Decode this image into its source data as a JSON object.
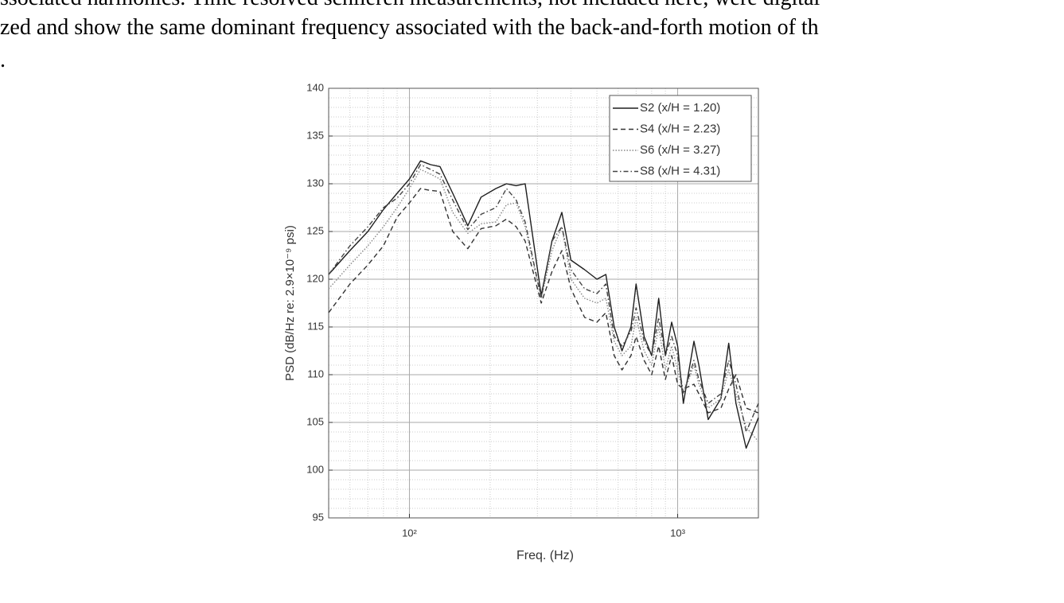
{
  "text_lines": [
    "ssociated harmonics. Time resolved schlieren measurements, not included here, were digital",
    "zed and show the same dominant frequency associated with the back-and-forth motion of th",
    "."
  ],
  "chart_data": {
    "type": "line",
    "x_label": "Freq. (Hz)",
    "y_label": "PSD (dB/Hz re: 2.9×10⁻⁹ psi)",
    "x": [
      50,
      60,
      70,
      80,
      90,
      100,
      110,
      120,
      130,
      145,
      165,
      185,
      210,
      230,
      250,
      270,
      310,
      340,
      370,
      400,
      450,
      500,
      540,
      580,
      620,
      670,
      700,
      750,
      800,
      850,
      900,
      950,
      1000,
      1050,
      1150,
      1200,
      1300,
      1450,
      1550,
      1650,
      1800,
      2000
    ],
    "series": [
      {
        "name": "S2 (x/H = 1.20)",
        "color": "#1e1e1e",
        "dash": "solid",
        "values": [
          120.5,
          123,
          125,
          127.3,
          129,
          130.5,
          132.4,
          132,
          131.8,
          129,
          125.6,
          128.6,
          129.5,
          130,
          129.8,
          130,
          118.3,
          124,
          127,
          122,
          121,
          120,
          120.5,
          115,
          112.5,
          115,
          119.5,
          114,
          112,
          118,
          112,
          115.5,
          113,
          107,
          113.5,
          111,
          105.3,
          107.5,
          113.3,
          107,
          102.3,
          105.5
        ]
      },
      {
        "name": "S4 (x/H = 2.23)",
        "color": "#333333",
        "dash": "dashed",
        "values": [
          116.5,
          119.5,
          121.5,
          123.5,
          126.5,
          128,
          129.5,
          129.3,
          129.2,
          125,
          123.2,
          125.3,
          125.6,
          126.3,
          125.5,
          124,
          117.5,
          120.8,
          123,
          119,
          116,
          115.5,
          116.5,
          112,
          110.5,
          112,
          114,
          111.5,
          110,
          113,
          109.5,
          112,
          109,
          108.5,
          109,
          108,
          106,
          106.5,
          108.5,
          110,
          106.5,
          106
        ]
      },
      {
        "name": "S6 (x/H = 3.27)",
        "color": "#888888",
        "dash": "dotted",
        "values": [
          119,
          121.5,
          123.5,
          125.5,
          127.5,
          129.5,
          131.5,
          131,
          130.5,
          127,
          124.8,
          125.8,
          126,
          127.8,
          128,
          125.5,
          118,
          123,
          125.5,
          120,
          118,
          117.5,
          118,
          113.5,
          112,
          113,
          116,
          112.5,
          111,
          115,
          110.5,
          113,
          110.5,
          108,
          111,
          109,
          106.5,
          107.5,
          110.5,
          108,
          104.5,
          103
        ]
      },
      {
        "name": "S8 (x/H = 4.31)",
        "color": "#444444",
        "dash": "dashdot",
        "values": [
          120.5,
          123.5,
          125.5,
          127.5,
          128.5,
          130,
          132,
          131.5,
          131,
          128.3,
          125.2,
          126.8,
          127.5,
          129.5,
          128.3,
          126,
          118,
          124,
          125.5,
          121,
          119,
          118.5,
          119.5,
          114,
          113,
          114.5,
          117,
          113.5,
          112,
          116,
          112,
          114,
          112,
          108,
          111.5,
          109.5,
          107,
          108,
          111.5,
          109,
          104,
          107
        ]
      }
    ],
    "xscale": "log",
    "xlim": [
      50,
      2000
    ],
    "xticks": [
      {
        "value": 100,
        "label": "10²"
      },
      {
        "value": 1000,
        "label": "10³"
      }
    ],
    "ylim": [
      95,
      140
    ],
    "yticks": [
      95,
      100,
      105,
      110,
      115,
      120,
      125,
      130,
      135,
      140
    ],
    "grid": true,
    "minor_grid": true,
    "legend": "upper right"
  }
}
